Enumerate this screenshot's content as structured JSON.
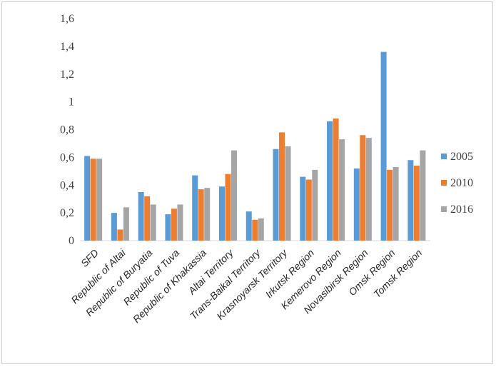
{
  "chart_data": {
    "type": "bar",
    "title": "",
    "xlabel": "",
    "ylabel": "",
    "ylim": [
      0,
      1.6
    ],
    "yticks": [
      "0",
      "0,2",
      "0,4",
      "0,6",
      "0,8",
      "1",
      "1,2",
      "1,4",
      "1,6"
    ],
    "grid": false,
    "legend_position": "right",
    "categories": [
      "SFD",
      "Republic of Altai",
      "Republic of Buryatia",
      "Republic of Tuva",
      "Republic of Khakassia",
      "Altai Territory",
      "Trans-Baikal Territory",
      "Krasnoyarsk Territory",
      "Irkutsk Region",
      "Kemerovo Region",
      "Novasibirsk Region",
      "Omsk Region",
      "Tomsk Region"
    ],
    "series": [
      {
        "name": "2005",
        "color": "#5b9bd5",
        "values": [
          0.61,
          0.2,
          0.35,
          0.19,
          0.47,
          0.39,
          0.21,
          0.66,
          0.46,
          0.86,
          0.52,
          1.36,
          0.58
        ]
      },
      {
        "name": "2010",
        "color": "#ed7d31",
        "values": [
          0.59,
          0.08,
          0.32,
          0.23,
          0.37,
          0.48,
          0.15,
          0.78,
          0.44,
          0.88,
          0.76,
          0.51,
          0.54
        ]
      },
      {
        "name": "2016",
        "color": "#a5a5a5",
        "values": [
          0.59,
          0.24,
          0.26,
          0.26,
          0.38,
          0.65,
          0.16,
          0.68,
          0.51,
          0.73,
          0.74,
          0.53,
          0.65
        ]
      }
    ]
  }
}
